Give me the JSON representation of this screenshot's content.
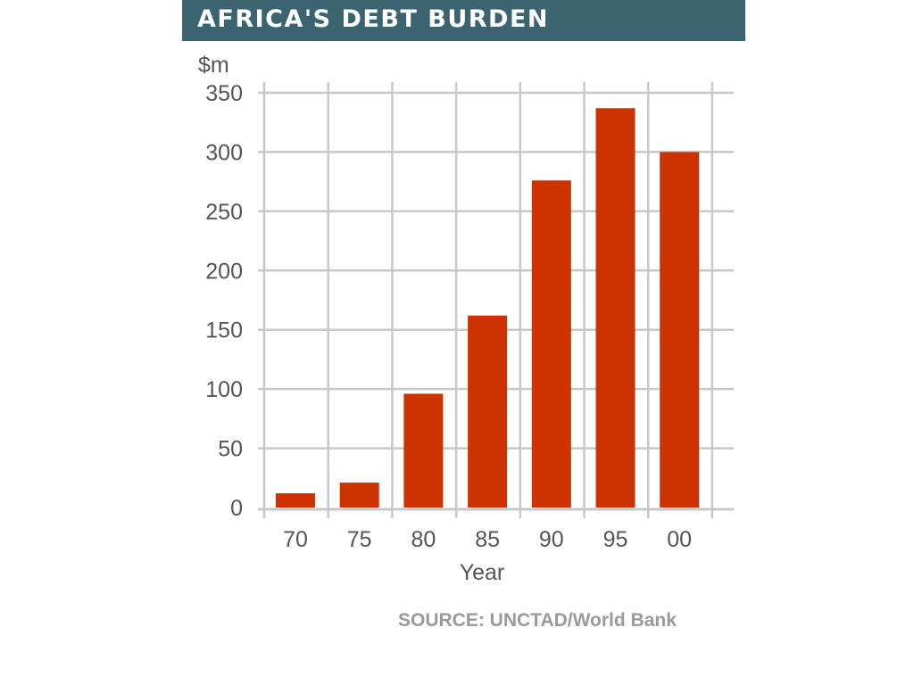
{
  "header": {
    "title": "AFRICA'S DEBT BURDEN"
  },
  "source": "SOURCE: UNCTAD/World Bank",
  "colors": {
    "header_bg": "#3b6470",
    "bar": "#cc3300",
    "grid": "#c8c8c8"
  },
  "chart_data": {
    "type": "bar",
    "title": "AFRICA'S DEBT BURDEN",
    "unit_label": "$m",
    "xlabel": "Year",
    "ylabel": "$m",
    "categories": [
      "70",
      "75",
      "80",
      "85",
      "90",
      "95",
      "00"
    ],
    "values": [
      12,
      21,
      96,
      162,
      276,
      337,
      300
    ],
    "ylim": [
      0,
      350
    ],
    "yticks": [
      0,
      50,
      100,
      150,
      200,
      250,
      300,
      350
    ],
    "grid": true,
    "legend": "none"
  }
}
